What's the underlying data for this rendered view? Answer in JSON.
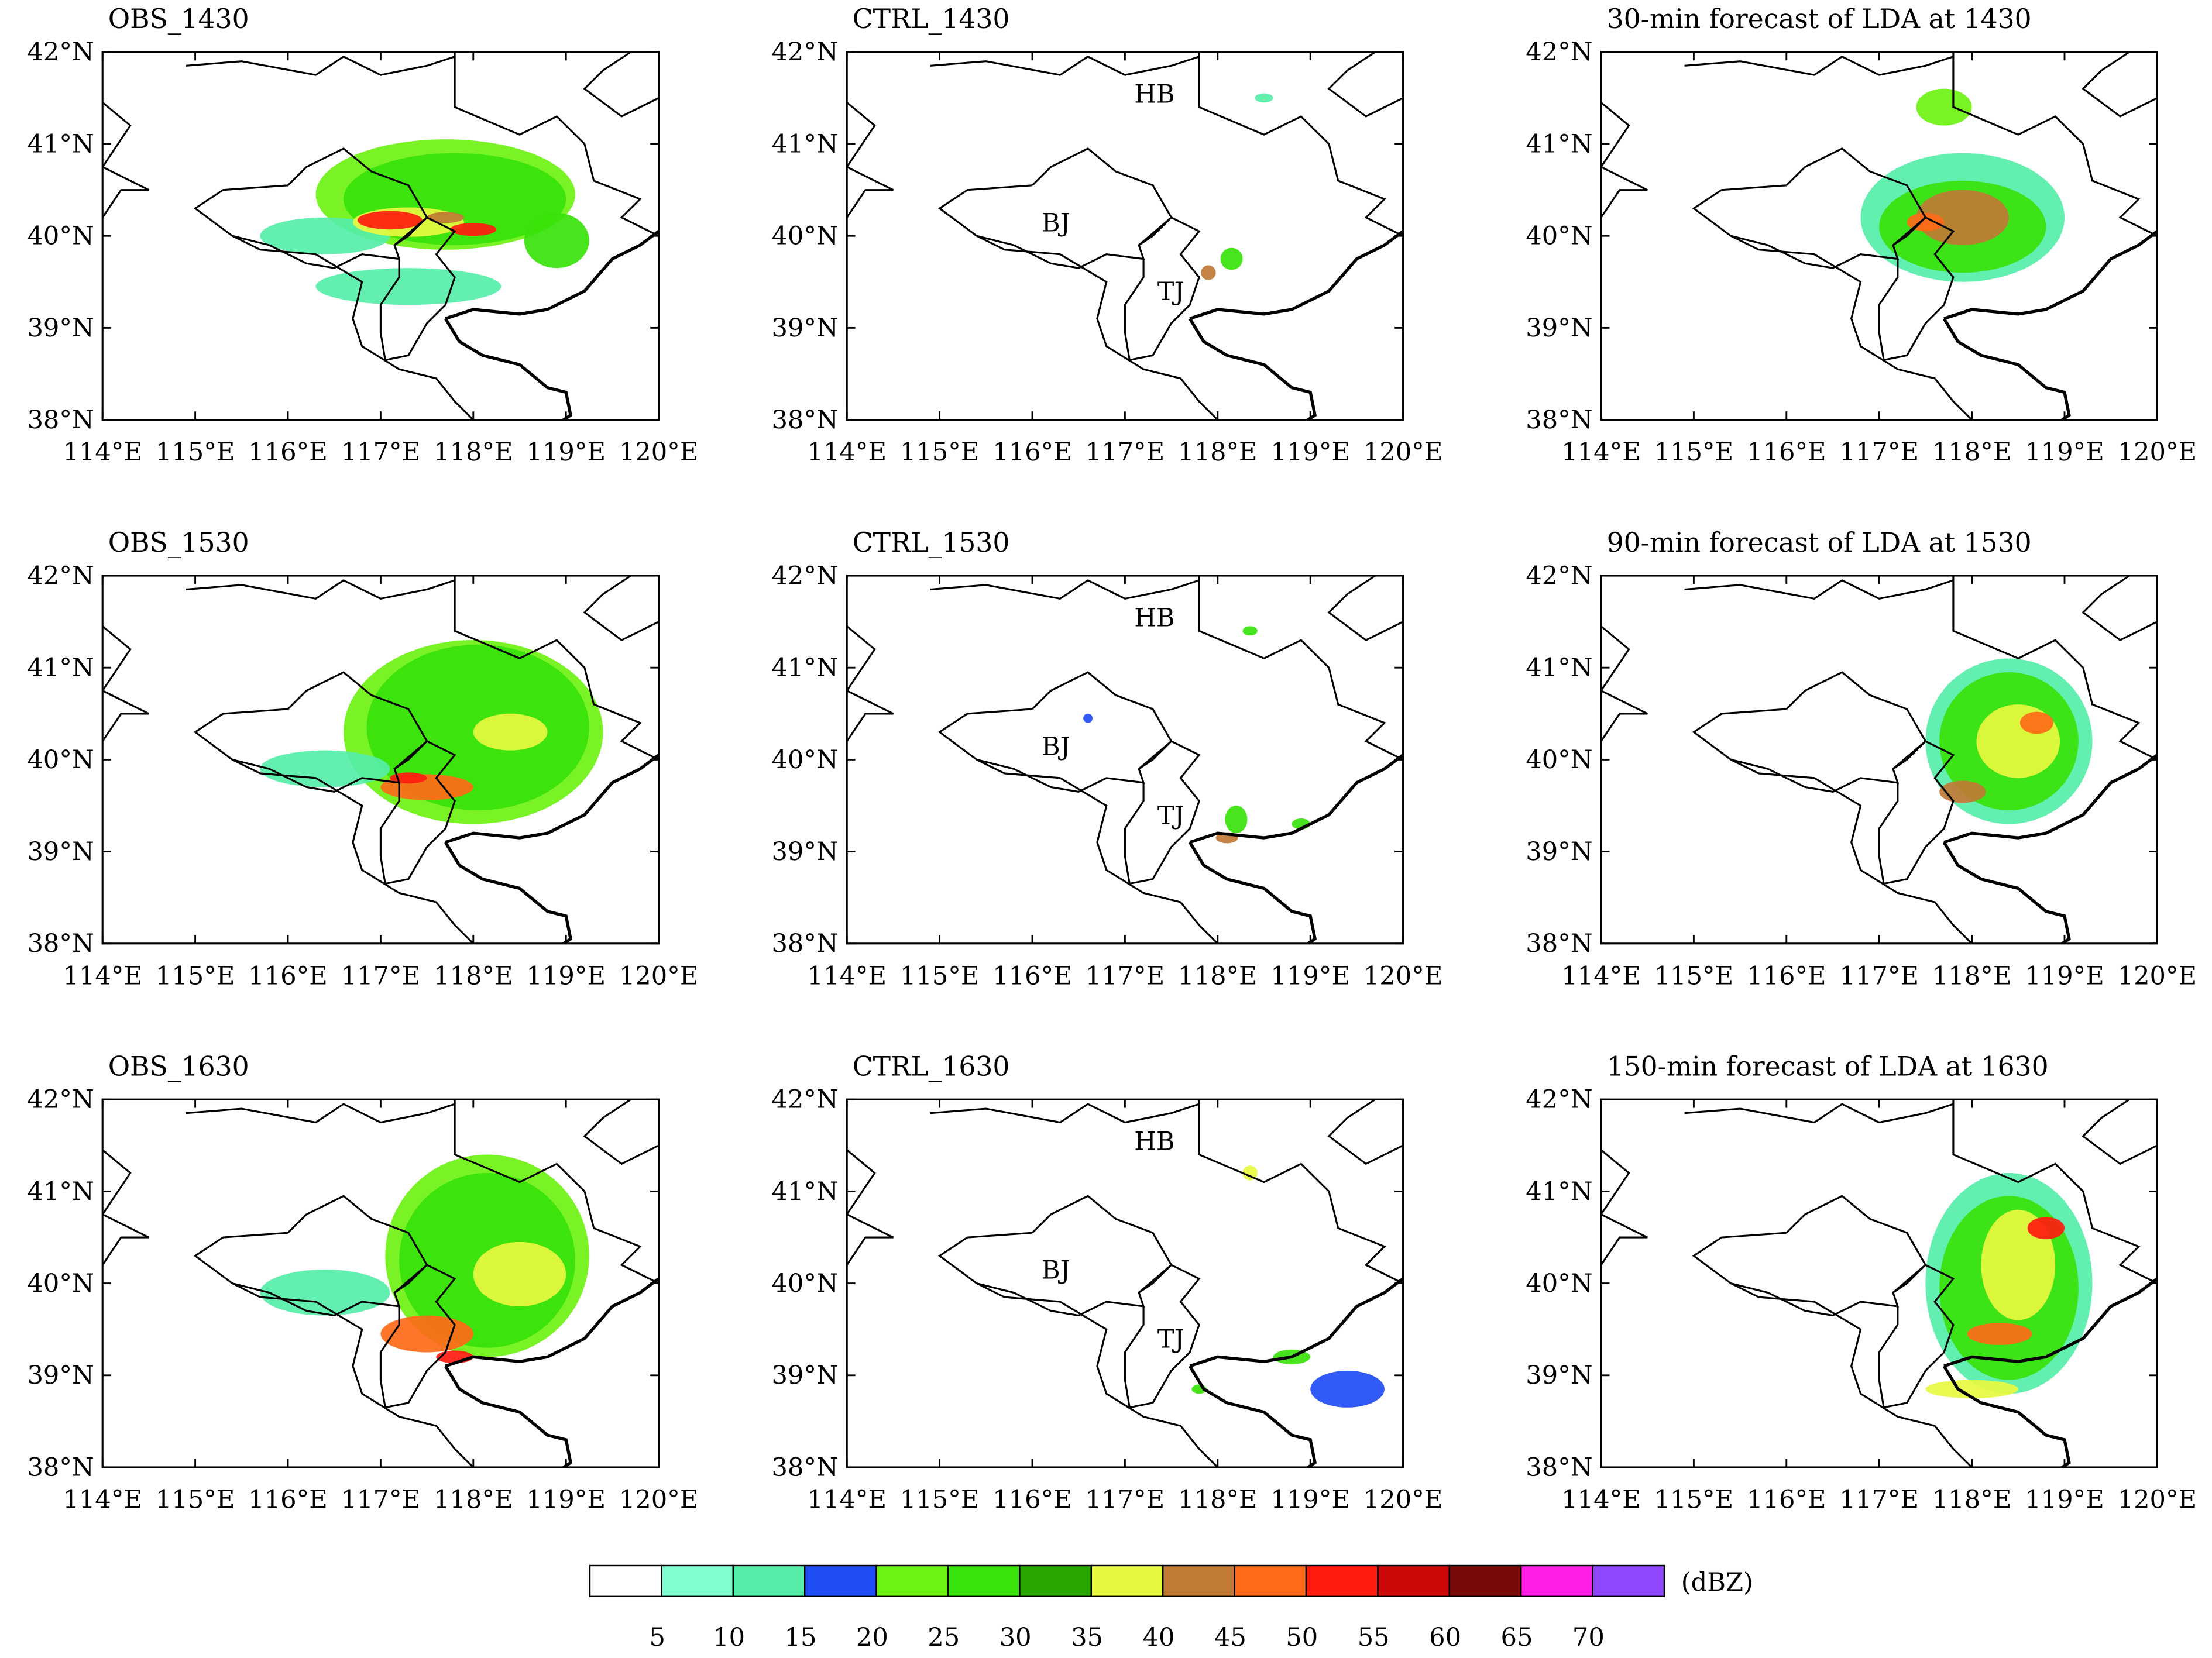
{
  "figure": {
    "type": "radar reflectivity composite maps",
    "rows": [
      "1430",
      "1530",
      "1630"
    ],
    "panels": [
      {
        "id": "obs-1430",
        "title": "OBS_1430",
        "row": 0,
        "col": 0
      },
      {
        "id": "ctrl-1430",
        "title": "CTRL_1430",
        "row": 0,
        "col": 1
      },
      {
        "id": "lda-1430",
        "title": "30-min forecast of LDA at 1430",
        "row": 0,
        "col": 2
      },
      {
        "id": "obs-1530",
        "title": "OBS_1530",
        "row": 1,
        "col": 0
      },
      {
        "id": "ctrl-1530",
        "title": "CTRL_1530",
        "row": 1,
        "col": 1
      },
      {
        "id": "lda-1530",
        "title": "90-min forecast of LDA at 1530",
        "row": 1,
        "col": 2
      },
      {
        "id": "obs-1630",
        "title": "OBS_1630",
        "row": 2,
        "col": 0
      },
      {
        "id": "ctrl-1630",
        "title": "CTRL_1630",
        "row": 2,
        "col": 1
      },
      {
        "id": "lda-1630",
        "title": "150-min forecast of LDA at 1630",
        "row": 2,
        "col": 2
      }
    ],
    "region_labels": [
      "HB",
      "BJ",
      "TJ"
    ]
  },
  "chart_data": {
    "type": "heatmap",
    "x_range": [
      114,
      120
    ],
    "y_range": [
      38,
      42
    ],
    "x_ticks": [
      114,
      115,
      116,
      117,
      118,
      119,
      120
    ],
    "y_ticks": [
      38,
      39,
      40,
      41,
      42
    ],
    "x_tick_labels": [
      "114°E",
      "115°E",
      "116°E",
      "117°E",
      "118°E",
      "119°E",
      "120°E"
    ],
    "y_tick_labels": [
      "38°N",
      "39°N",
      "40°N",
      "41°N",
      "42°N"
    ],
    "colorbar": {
      "unit": "(dBZ)",
      "levels": [
        5,
        10,
        15,
        20,
        25,
        30,
        35,
        40,
        45,
        50,
        55,
        60,
        65,
        70
      ],
      "level_labels": [
        "5",
        "10",
        "15",
        "20",
        "25",
        "30",
        "35",
        "40",
        "45",
        "50",
        "55",
        "60",
        "65",
        "70"
      ],
      "colors": [
        "#ffffff",
        "#7fffd0",
        "#55eea8",
        "#1f4cf5",
        "#6ef212",
        "#38e20a",
        "#2aa800",
        "#e8f840",
        "#c07a35",
        "#ff6a18",
        "#ff1b10",
        "#cc0808",
        "#7a0a08",
        "#ff1ee6",
        "#9048ff"
      ]
    },
    "echoes": {
      "obs-1430": [
        {
          "lon": 117.7,
          "lat": 40.45,
          "rx": 1.4,
          "ry": 0.6,
          "dbz": 20
        },
        {
          "lon": 117.8,
          "lat": 40.4,
          "rx": 1.2,
          "ry": 0.5,
          "dbz": 27
        },
        {
          "lon": 118.9,
          "lat": 39.95,
          "rx": 0.35,
          "ry": 0.3,
          "dbz": 27
        },
        {
          "lon": 116.4,
          "lat": 40.0,
          "rx": 0.7,
          "ry": 0.2,
          "dbz": 12
        },
        {
          "lon": 117.3,
          "lat": 39.45,
          "rx": 1.0,
          "ry": 0.2,
          "dbz": 10
        },
        {
          "lon": 117.3,
          "lat": 40.15,
          "rx": 0.6,
          "ry": 0.16,
          "dbz": 37
        },
        {
          "lon": 117.1,
          "lat": 40.17,
          "rx": 0.35,
          "ry": 0.1,
          "dbz": 52
        },
        {
          "lon": 118.0,
          "lat": 40.07,
          "rx": 0.25,
          "ry": 0.07,
          "dbz": 52
        },
        {
          "lon": 117.7,
          "lat": 40.2,
          "rx": 0.2,
          "ry": 0.06,
          "dbz": 42
        }
      ],
      "ctrl-1430": [
        {
          "lon": 118.15,
          "lat": 39.75,
          "rx": 0.12,
          "ry": 0.12,
          "dbz": 27
        },
        {
          "lon": 117.9,
          "lat": 39.6,
          "rx": 0.08,
          "ry": 0.08,
          "dbz": 40
        },
        {
          "lon": 118.5,
          "lat": 41.5,
          "rx": 0.1,
          "ry": 0.05,
          "dbz": 12
        }
      ],
      "lda-1430": [
        {
          "lon": 117.9,
          "lat": 40.2,
          "rx": 1.1,
          "ry": 0.7,
          "dbz": 12
        },
        {
          "lon": 117.9,
          "lat": 40.1,
          "rx": 0.9,
          "ry": 0.5,
          "dbz": 27
        },
        {
          "lon": 117.9,
          "lat": 40.2,
          "rx": 0.5,
          "ry": 0.3,
          "dbz": 40
        },
        {
          "lon": 117.5,
          "lat": 40.15,
          "rx": 0.2,
          "ry": 0.1,
          "dbz": 47
        },
        {
          "lon": 117.7,
          "lat": 41.4,
          "rx": 0.3,
          "ry": 0.2,
          "dbz": 22
        }
      ],
      "obs-1530": [
        {
          "lon": 118.0,
          "lat": 40.3,
          "rx": 1.4,
          "ry": 1.0,
          "dbz": 20
        },
        {
          "lon": 118.05,
          "lat": 40.35,
          "rx": 1.2,
          "ry": 0.9,
          "dbz": 27
        },
        {
          "lon": 118.4,
          "lat": 40.3,
          "rx": 0.4,
          "ry": 0.2,
          "dbz": 37
        },
        {
          "lon": 116.4,
          "lat": 39.9,
          "rx": 0.7,
          "ry": 0.2,
          "dbz": 12
        },
        {
          "lon": 117.5,
          "lat": 39.7,
          "rx": 0.5,
          "ry": 0.14,
          "dbz": 47
        },
        {
          "lon": 117.3,
          "lat": 39.8,
          "rx": 0.2,
          "ry": 0.06,
          "dbz": 52
        }
      ],
      "ctrl-1530": [
        {
          "lon": 118.2,
          "lat": 39.35,
          "rx": 0.12,
          "ry": 0.15,
          "dbz": 27
        },
        {
          "lon": 118.1,
          "lat": 39.15,
          "rx": 0.12,
          "ry": 0.06,
          "dbz": 42
        },
        {
          "lon": 118.9,
          "lat": 39.3,
          "rx": 0.1,
          "ry": 0.06,
          "dbz": 27
        },
        {
          "lon": 118.35,
          "lat": 41.4,
          "rx": 0.08,
          "ry": 0.05,
          "dbz": 27
        },
        {
          "lon": 116.6,
          "lat": 40.45,
          "rx": 0.05,
          "ry": 0.05,
          "dbz": 17
        }
      ],
      "lda-1530": [
        {
          "lon": 118.4,
          "lat": 40.2,
          "rx": 0.9,
          "ry": 0.9,
          "dbz": 12
        },
        {
          "lon": 118.4,
          "lat": 40.2,
          "rx": 0.75,
          "ry": 0.75,
          "dbz": 27
        },
        {
          "lon": 118.5,
          "lat": 40.2,
          "rx": 0.45,
          "ry": 0.4,
          "dbz": 37
        },
        {
          "lon": 118.7,
          "lat": 40.4,
          "rx": 0.18,
          "ry": 0.12,
          "dbz": 47
        },
        {
          "lon": 117.9,
          "lat": 39.65,
          "rx": 0.25,
          "ry": 0.12,
          "dbz": 42
        }
      ],
      "obs-1630": [
        {
          "lon": 118.15,
          "lat": 40.3,
          "rx": 1.1,
          "ry": 1.1,
          "dbz": 20
        },
        {
          "lon": 118.15,
          "lat": 40.25,
          "rx": 0.95,
          "ry": 0.95,
          "dbz": 27
        },
        {
          "lon": 118.5,
          "lat": 40.1,
          "rx": 0.5,
          "ry": 0.35,
          "dbz": 37
        },
        {
          "lon": 116.4,
          "lat": 39.9,
          "rx": 0.7,
          "ry": 0.25,
          "dbz": 12
        },
        {
          "lon": 117.5,
          "lat": 39.45,
          "rx": 0.5,
          "ry": 0.2,
          "dbz": 47
        },
        {
          "lon": 117.8,
          "lat": 39.2,
          "rx": 0.2,
          "ry": 0.07,
          "dbz": 52
        }
      ],
      "ctrl-1630": [
        {
          "lon": 118.8,
          "lat": 39.2,
          "rx": 0.2,
          "ry": 0.08,
          "dbz": 27
        },
        {
          "lon": 119.4,
          "lat": 38.85,
          "rx": 0.4,
          "ry": 0.2,
          "dbz": 17
        },
        {
          "lon": 118.35,
          "lat": 41.2,
          "rx": 0.08,
          "ry": 0.08,
          "dbz": 37
        },
        {
          "lon": 117.8,
          "lat": 38.85,
          "rx": 0.08,
          "ry": 0.05,
          "dbz": 27
        }
      ],
      "lda-1630": [
        {
          "lon": 118.4,
          "lat": 40.0,
          "rx": 0.9,
          "ry": 1.2,
          "dbz": 12
        },
        {
          "lon": 118.4,
          "lat": 39.95,
          "rx": 0.75,
          "ry": 1.0,
          "dbz": 27
        },
        {
          "lon": 118.5,
          "lat": 40.2,
          "rx": 0.4,
          "ry": 0.6,
          "dbz": 37
        },
        {
          "lon": 118.8,
          "lat": 40.6,
          "rx": 0.2,
          "ry": 0.12,
          "dbz": 52
        },
        {
          "lon": 118.3,
          "lat": 39.45,
          "rx": 0.35,
          "ry": 0.12,
          "dbz": 47
        },
        {
          "lon": 118.0,
          "lat": 38.85,
          "rx": 0.5,
          "ry": 0.1,
          "dbz": 37
        }
      ]
    }
  }
}
